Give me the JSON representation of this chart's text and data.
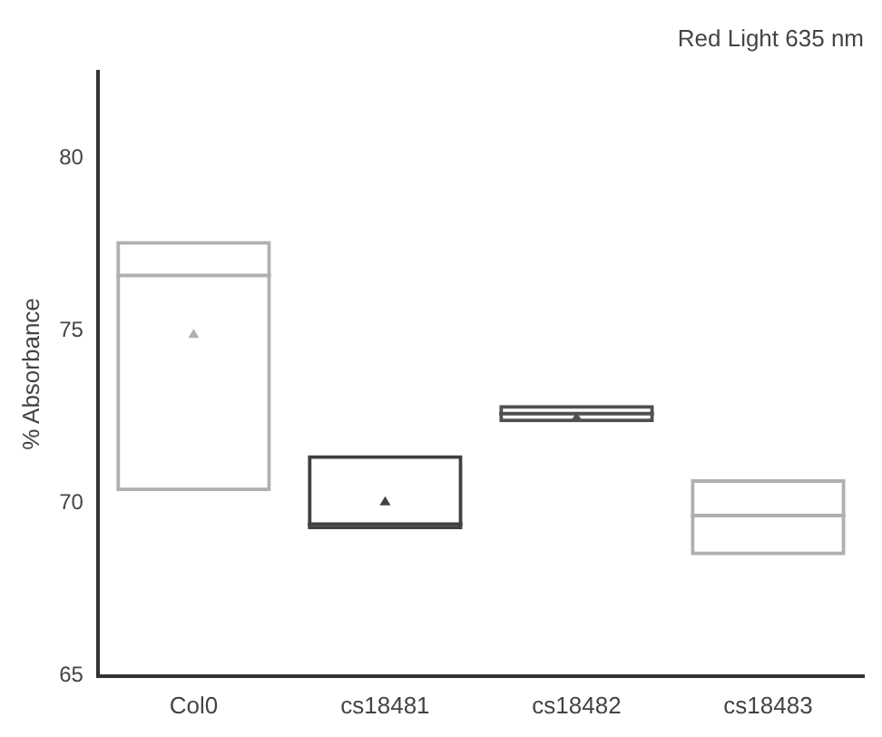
{
  "chart_data": {
    "type": "box",
    "title": "Red Light 635 nm",
    "ylabel": "% Absorbance",
    "categories": [
      "Col0",
      "cs18481",
      "cs18482",
      "cs18483"
    ],
    "boxes": [
      {
        "low": 70.35,
        "q1": 70.35,
        "median": 76.6,
        "q3": 77.6,
        "high": 77.6,
        "mean": 74.9
      },
      {
        "low": 69.25,
        "q1": 69.25,
        "median": 69.4,
        "q3": 71.4,
        "high": 71.4,
        "mean": 70.05
      },
      {
        "low": 72.35,
        "q1": 72.35,
        "median": 72.6,
        "q3": 72.85,
        "high": 72.85,
        "mean": 72.5
      },
      {
        "low": 68.5,
        "q1": 68.5,
        "median": 69.65,
        "q3": 70.7,
        "high": 70.7
      }
    ],
    "colors": [
      "#b0b0b0",
      "#404040",
      "#505050",
      "#b0b0b0"
    ],
    "ylim": [
      65,
      82.5
    ],
    "yticks": [
      65,
      70,
      75,
      80
    ],
    "grid": false,
    "legend": false
  }
}
